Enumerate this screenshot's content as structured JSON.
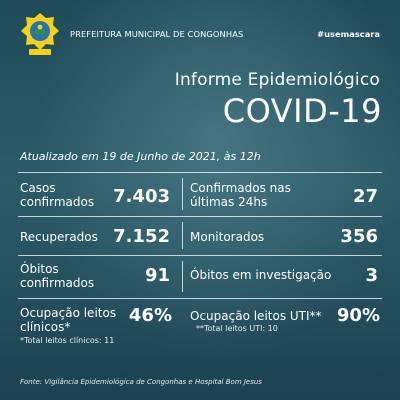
{
  "header": {
    "org_name": "PREFEITURA MUNICIPAL DE CONGONHAS",
    "hashtag": "#usemascara"
  },
  "subtitle": "Informe Epidemiológico",
  "title": "COVID-19",
  "updated": "Atualizado em 19 de Junho de 2021, às 12h",
  "stats": {
    "casos": {
      "label_1": "Casos",
      "label_2": "confirmados",
      "value": "7.403"
    },
    "confirmados_24h": {
      "label_1": "Confirmados nas",
      "label_2": "últimas 24hs",
      "value": "27"
    },
    "recuperados": {
      "label": "Recuperados",
      "value": "7.152"
    },
    "monitorados": {
      "label": "Monitorados",
      "value": "356"
    },
    "obitos": {
      "label_1": "Óbitos",
      "label_2": "confirmados",
      "value": "91"
    },
    "obitos_investigacao": {
      "label": "Óbitos em investigação",
      "value": "3"
    },
    "ocupacao_clinicos": {
      "label_1": "Ocupação leitos",
      "label_2": "clínicos*",
      "value": "46%",
      "note": "*Total leitos clínicos: 11"
    },
    "ocupacao_uti": {
      "label": "Ocupação leitos UTI**",
      "value": "90%",
      "note": "**Total leitos UTI: 10"
    }
  },
  "source": "Fonte: Vigilância Epidemiológica de Congonhas e Hospital Bom Jesus",
  "colors": {
    "background_top": "#1f4a5a",
    "background_bottom": "#1c4150",
    "crest_yellow": "#f2d21b",
    "crest_blue": "#2c6fb3",
    "crest_green": "#2f8f3e"
  }
}
